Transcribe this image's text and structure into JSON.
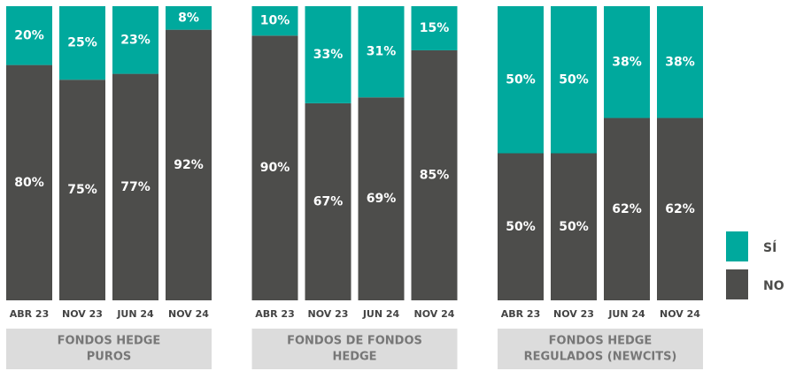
{
  "chart_data": {
    "type": "bar",
    "stacked": true,
    "groups": [
      {
        "title_lines": [
          "FONDOS HEDGE",
          "PUROS"
        ],
        "categories": [
          "ABR 23",
          "NOV 23",
          "JUN 24",
          "NOV 24"
        ]
      },
      {
        "title_lines": [
          "FONDOS DE FONDOS",
          "HEDGE"
        ],
        "categories": [
          "ABR 23",
          "NOV 23",
          "JUN 24",
          "NOV 24"
        ]
      },
      {
        "title_lines": [
          "FONDOS HEDGE",
          "REGULADOS (NEWCITS)"
        ],
        "categories": [
          "ABR 23",
          "NOV 23",
          "JUN 24",
          "NOV 24"
        ]
      }
    ],
    "series": [
      {
        "name": "NO",
        "color": "#4d4d4b",
        "values": [
          80,
          75,
          77,
          92,
          90,
          67,
          69,
          85,
          50,
          50,
          62,
          62
        ],
        "value_labels": [
          "80%",
          "75%",
          "77%",
          "92%",
          "90%",
          "67%",
          "69%",
          "85%",
          "50%",
          "50%",
          "62%",
          "62%"
        ]
      },
      {
        "name": "SÍ",
        "color": "#00a99d",
        "values": [
          20,
          25,
          23,
          8,
          10,
          33,
          31,
          15,
          50,
          50,
          38,
          38
        ],
        "value_labels": [
          "20%",
          "25%",
          "23%",
          "8%",
          "10%",
          "33%",
          "31%",
          "15%",
          "50%",
          "50%",
          "38%",
          "38%"
        ]
      }
    ],
    "ylim": [
      0,
      100
    ]
  }
}
